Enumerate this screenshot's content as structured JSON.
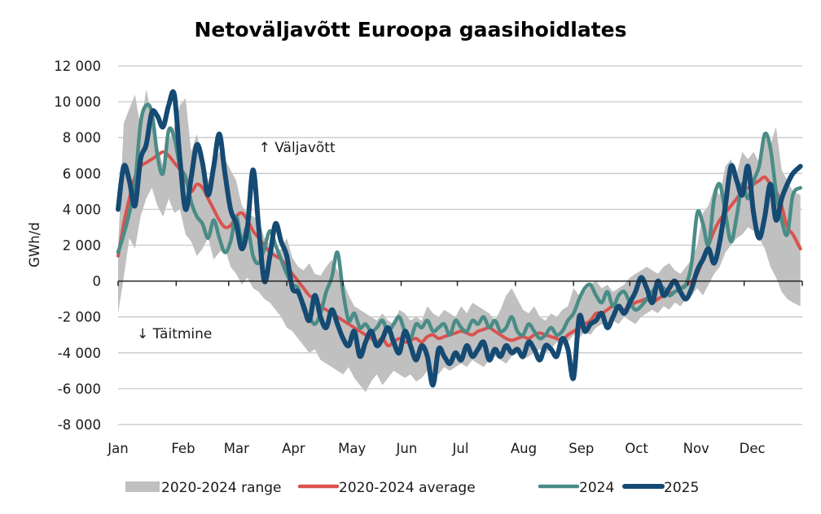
{
  "chart_data": {
    "type": "line",
    "title": "Netoväljavõtt Euroopa gaasihoidlates",
    "xlabel": "",
    "ylabel": "GWh/d",
    "ylim": [
      -8000,
      12000
    ],
    "xlim_days": [
      0,
      365
    ],
    "grid": true,
    "legend_position": "bottom",
    "y_ticks": [
      {
        "value": 12000,
        "label": "12 000"
      },
      {
        "value": 10000,
        "label": "10 000"
      },
      {
        "value": 8000,
        "label": "8 000"
      },
      {
        "value": 6000,
        "label": "6 000"
      },
      {
        "value": 4000,
        "label": "4 000"
      },
      {
        "value": 2000,
        "label": "2 000"
      },
      {
        "value": 0,
        "label": "0"
      },
      {
        "value": -2000,
        "label": "-2 000"
      },
      {
        "value": -4000,
        "label": "-4 000"
      },
      {
        "value": -6000,
        "label": "-6 000"
      },
      {
        "value": -8000,
        "label": "-8 000"
      }
    ],
    "x_ticks": [
      {
        "day": 0,
        "label": "Jan"
      },
      {
        "day": 31,
        "label": "Feb"
      },
      {
        "day": 59,
        "label": "Mar"
      },
      {
        "day": 90,
        "label": "Apr"
      },
      {
        "day": 120,
        "label": "May"
      },
      {
        "day": 151,
        "label": "Jun"
      },
      {
        "day": 181,
        "label": "Jul"
      },
      {
        "day": 212,
        "label": "Aug"
      },
      {
        "day": 243,
        "label": "Sep"
      },
      {
        "day": 273,
        "label": "Oct"
      },
      {
        "day": 304,
        "label": "Nov"
      },
      {
        "day": 334,
        "label": "Dec"
      },
      {
        "day": 365,
        "label": ""
      }
    ],
    "annotations": [
      {
        "text": "↑ Väljavõtt",
        "day": 75,
        "value": 7200
      },
      {
        "text": "↓ Täitmine",
        "day": 10,
        "value": -3200
      }
    ],
    "x_days": [
      0,
      3,
      6,
      9,
      12,
      15,
      18,
      21,
      24,
      27,
      30,
      33,
      36,
      39,
      42,
      45,
      48,
      51,
      54,
      57,
      60,
      63,
      66,
      69,
      72,
      75,
      78,
      81,
      84,
      87,
      90,
      93,
      96,
      99,
      102,
      105,
      108,
      111,
      114,
      117,
      120,
      123,
      126,
      129,
      132,
      135,
      138,
      141,
      144,
      147,
      150,
      153,
      156,
      159,
      162,
      165,
      168,
      171,
      174,
      177,
      180,
      183,
      186,
      189,
      192,
      195,
      198,
      201,
      204,
      207,
      210,
      213,
      216,
      219,
      222,
      225,
      228,
      231,
      234,
      237,
      240,
      243,
      246,
      249,
      252,
      255,
      258,
      261,
      264,
      267,
      270,
      273,
      276,
      279,
      282,
      285,
      288,
      291,
      294,
      297,
      300,
      303,
      306,
      309,
      312,
      315,
      318,
      321,
      324,
      327,
      330,
      333,
      336,
      339,
      342,
      345,
      348,
      351,
      354,
      357,
      360,
      364
    ],
    "series": [
      {
        "name": "2020-2024 range",
        "kind": "band",
        "color": "#c0c0c0",
        "upper": [
          1800,
          8800,
          9600,
          10400,
          8600,
          10700,
          9200,
          7600,
          6400,
          7800,
          8600,
          9800,
          10200,
          7200,
          8200,
          6800,
          5600,
          6400,
          7200,
          6800,
          6200,
          5600,
          4200,
          3800,
          3600,
          3400,
          2400,
          2000,
          1600,
          1800,
          2400,
          1300,
          800,
          600,
          1000,
          400,
          300,
          800,
          1200,
          600,
          0,
          -800,
          -1400,
          -1600,
          -1800,
          -2000,
          -2200,
          -1800,
          -2200,
          -2400,
          -1600,
          -1800,
          -2200,
          -2000,
          -2200,
          -1400,
          -1800,
          -2000,
          -1600,
          -1800,
          -2000,
          -1400,
          -1800,
          -1200,
          -1400,
          -1600,
          -1800,
          -2200,
          -1600,
          -800,
          -400,
          -1000,
          -1600,
          -1800,
          -1400,
          -2000,
          -2200,
          -1800,
          -2000,
          -1600,
          -1400,
          -400,
          -800,
          -600,
          -200,
          0,
          -400,
          -200,
          -600,
          -400,
          -200,
          200,
          400,
          600,
          800,
          600,
          400,
          800,
          1000,
          600,
          400,
          800,
          1200,
          2000,
          3800,
          4200,
          5200,
          4800,
          6400,
          6800,
          6000,
          7200,
          6800,
          7200,
          6600,
          8000,
          7600,
          8600,
          6200,
          5600,
          5000,
          4800
        ],
        "lower": [
          -1800,
          200,
          2400,
          1800,
          3600,
          4600,
          5200,
          4200,
          3600,
          4600,
          3800,
          4000,
          2600,
          2200,
          1400,
          1800,
          2400,
          1200,
          1600,
          1800,
          800,
          400,
          -200,
          200,
          -400,
          -600,
          -1000,
          -1200,
          -1600,
          -2000,
          -2600,
          -2800,
          -3200,
          -3600,
          -4000,
          -3800,
          -4400,
          -4600,
          -4800,
          -5000,
          -5200,
          -4800,
          -5400,
          -5800,
          -6200,
          -5600,
          -5200,
          -5800,
          -5400,
          -5000,
          -5200,
          -5400,
          -5200,
          -5600,
          -5400,
          -5000,
          -5200,
          -5200,
          -4800,
          -5000,
          -4800,
          -4600,
          -4800,
          -4400,
          -4600,
          -4800,
          -4400,
          -4200,
          -4400,
          -4600,
          -4200,
          -4000,
          -4400,
          -4200,
          -4000,
          -3800,
          -4000,
          -3800,
          -3400,
          -3600,
          -3400,
          -3000,
          -3200,
          -2800,
          -3000,
          -2600,
          -2400,
          -2600,
          -2200,
          -2400,
          -2000,
          -2200,
          -2400,
          -2000,
          -1800,
          -1600,
          -1800,
          -1400,
          -1600,
          -1200,
          -1400,
          -1000,
          -800,
          -400,
          -800,
          -200,
          400,
          800,
          1600,
          2000,
          2400,
          2600,
          3000,
          2800,
          2400,
          1800,
          800,
          200,
          -600,
          -1000,
          -1200,
          -1400
        ]
      },
      {
        "name": "2020-2024 average",
        "kind": "line",
        "color": "#d9534f",
        "values": [
          1400,
          3200,
          4600,
          5800,
          6400,
          6600,
          6800,
          7000,
          7200,
          7000,
          6600,
          6200,
          5600,
          5000,
          5400,
          5200,
          4600,
          4000,
          3400,
          3000,
          3100,
          3600,
          3800,
          3400,
          2800,
          2400,
          2000,
          1600,
          1400,
          1200,
          800,
          400,
          0,
          -400,
          -800,
          -1000,
          -1400,
          -1600,
          -1800,
          -2000,
          -2200,
          -2400,
          -2600,
          -2800,
          -3000,
          -3200,
          -3400,
          -3200,
          -3600,
          -3400,
          -3200,
          -3400,
          -3300,
          -3200,
          -3400,
          -3100,
          -3000,
          -3200,
          -3100,
          -3000,
          -2900,
          -2800,
          -2900,
          -3000,
          -2800,
          -2700,
          -2600,
          -2800,
          -3000,
          -3200,
          -3300,
          -3200,
          -3100,
          -3200,
          -3000,
          -2900,
          -3000,
          -3100,
          -3200,
          -3300,
          -3000,
          -2800,
          -2600,
          -2400,
          -2200,
          -1800,
          -1800,
          -1600,
          -1400,
          -1500,
          -1600,
          -1400,
          -1200,
          -1100,
          -1000,
          -1200,
          -1000,
          -800,
          -700,
          -600,
          -400,
          -200,
          0,
          400,
          1200,
          2000,
          2800,
          3400,
          3800,
          4200,
          4600,
          5000,
          5200,
          5400,
          5600,
          5800,
          5400,
          5000,
          4200,
          3000,
          2600,
          1800
        ]
      },
      {
        "name": "2024",
        "kind": "line",
        "color": "#4a8c87",
        "values": [
          1600,
          2600,
          3800,
          5400,
          8800,
          9800,
          9400,
          7000,
          6000,
          8400,
          8000,
          6400,
          5800,
          4400,
          3600,
          3200,
          2400,
          3400,
          2400,
          1600,
          2200,
          3600,
          2200,
          3000,
          1400,
          1000,
          1800,
          2800,
          2000,
          1200,
          400,
          -200,
          -400,
          -1600,
          -2000,
          -2400,
          -1800,
          -600,
          200,
          1600,
          -600,
          -2200,
          -1800,
          -2600,
          -2400,
          -2800,
          -2600,
          -2200,
          -2800,
          -2400,
          -2000,
          -2800,
          -3200,
          -2400,
          -2600,
          -2200,
          -2800,
          -2600,
          -2400,
          -3000,
          -2200,
          -2600,
          -2800,
          -2200,
          -2400,
          -2000,
          -2600,
          -2200,
          -2800,
          -2600,
          -2000,
          -2800,
          -3000,
          -2400,
          -2800,
          -3200,
          -3000,
          -2600,
          -3000,
          -2800,
          -2200,
          -1800,
          -1000,
          -400,
          -200,
          -800,
          -1200,
          -600,
          -1400,
          -800,
          -600,
          -1200,
          -1600,
          -1400,
          -1000,
          -600,
          -200,
          -400,
          -800,
          -600,
          -400,
          -200,
          1000,
          3800,
          3200,
          2000,
          4600,
          5400,
          3800,
          2200,
          3600,
          5400,
          4600,
          5600,
          6400,
          8200,
          7400,
          5000,
          3400,
          2600,
          4800,
          5200
        ]
      },
      {
        "name": "2025",
        "kind": "line",
        "color": "#154a73",
        "values": [
          4000,
          6400,
          5600,
          4200,
          6800,
          7600,
          9400,
          9200,
          8600,
          9800,
          10400,
          6800,
          4000,
          5800,
          7600,
          6600,
          4800,
          6400,
          8200,
          6000,
          4000,
          3200,
          1800,
          3000,
          6200,
          3000,
          0,
          1400,
          3200,
          2200,
          1400,
          -400,
          -600,
          -1400,
          -2200,
          -800,
          -2000,
          -2600,
          -1600,
          -2400,
          -3200,
          -3600,
          -2800,
          -4200,
          -3400,
          -2800,
          -3600,
          -3200,
          -2600,
          -3400,
          -4000,
          -2800,
          -3600,
          -4400,
          -3600,
          -4200,
          -5800,
          -3800,
          -4200,
          -4600,
          -4000,
          -4400,
          -3600,
          -4200,
          -3800,
          -3400,
          -4400,
          -3800,
          -4200,
          -3600,
          -4000,
          -3800,
          -4200,
          -3400,
          -3800,
          -4400,
          -3600,
          -3800,
          -4200,
          -3200,
          -3800,
          -5400,
          -2000,
          -2800,
          -2400,
          -2200,
          -1800,
          -2600,
          -2000,
          -1400,
          -1800,
          -1200,
          -600,
          200,
          -400,
          -1200,
          0,
          -800,
          -400,
          0,
          -600,
          -1000,
          -400,
          600,
          1200,
          1800,
          1000,
          2200,
          4200,
          6400,
          5600,
          4800,
          6400,
          3800,
          2400,
          3600,
          5400,
          3400,
          4600,
          5400,
          6000,
          6400
        ]
      }
    ]
  }
}
